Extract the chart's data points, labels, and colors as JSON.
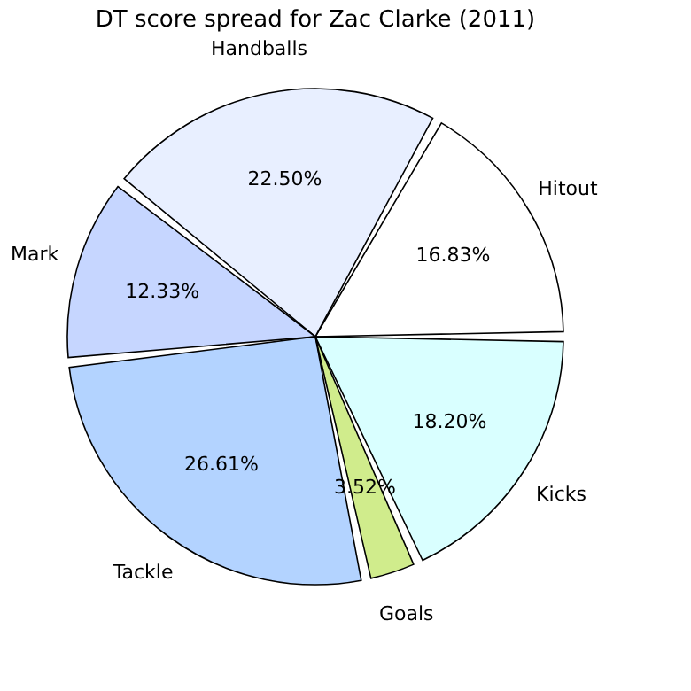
{
  "chart_data": {
    "type": "pie",
    "title": "DT score spread for Zac Clarke (2011)",
    "categories": [
      "Hitout",
      "Handballs",
      "Mark",
      "Tackle",
      "Goals",
      "Kicks"
    ],
    "values": [
      16.83,
      22.5,
      12.33,
      26.61,
      3.52,
      18.2
    ],
    "colors": [
      "#ffffff",
      "#e8efff",
      "#c6d6ff",
      "#b3d3ff",
      "#d0ec8c",
      "#d9ffff"
    ],
    "value_labels": [
      "16.83%",
      "22.50%",
      "12.33%",
      "26.61%",
      "3.52%",
      "18.20%"
    ],
    "legend": false
  }
}
